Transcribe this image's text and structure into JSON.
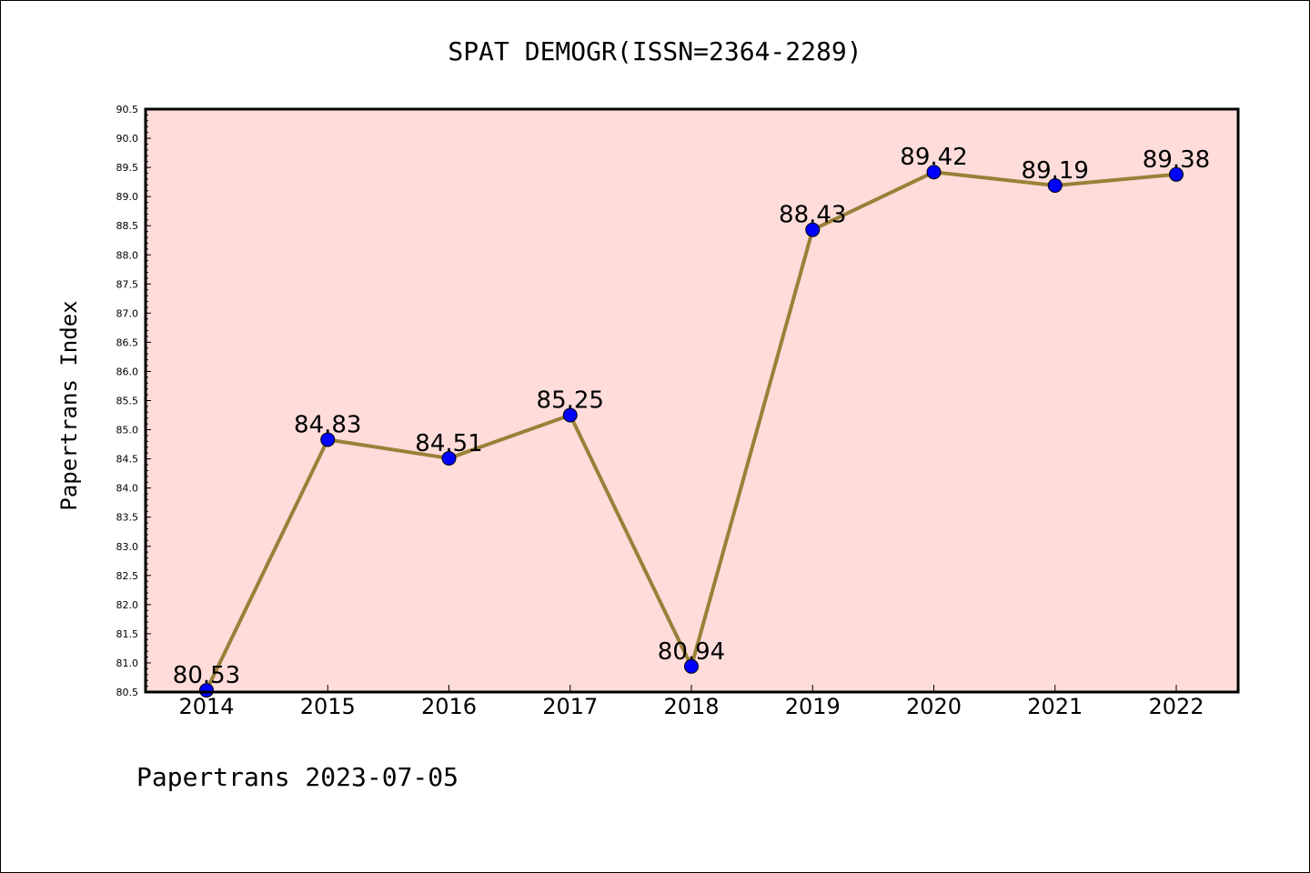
{
  "chart_data": {
    "type": "line",
    "title": "SPAT DEMOGR(ISSN=2364-2289)",
    "xlabel": "",
    "ylabel": "Papertrans Index",
    "categories": [
      "2014",
      "2015",
      "2016",
      "2017",
      "2018",
      "2019",
      "2020",
      "2021",
      "2022"
    ],
    "series": [
      {
        "values": [
          80.53,
          84.83,
          84.51,
          85.25,
          80.94,
          88.43,
          89.42,
          89.19,
          89.38
        ],
        "data_labels": [
          "80.53",
          "84.83",
          "84.51",
          "85.25",
          "80.94",
          "88.43",
          "89.42",
          "89.19",
          "89.38"
        ]
      }
    ],
    "ylim": [
      80.5,
      90.5
    ],
    "yticks": [
      "80.5",
      "81.0",
      "81.5",
      "82.0",
      "82.5",
      "83.0",
      "83.5",
      "84.0",
      "84.5",
      "85.0",
      "85.5",
      "86.0",
      "86.5",
      "87.0",
      "87.5",
      "88.0",
      "88.5",
      "89.0",
      "89.5",
      "90.0",
      "90.5"
    ],
    "grid": false,
    "legend": "none",
    "colors": {
      "plot_background": "#fddcda",
      "line": "#9a8038",
      "marker": "#0000ff"
    }
  },
  "footer": "Papertrans 2023-07-05"
}
